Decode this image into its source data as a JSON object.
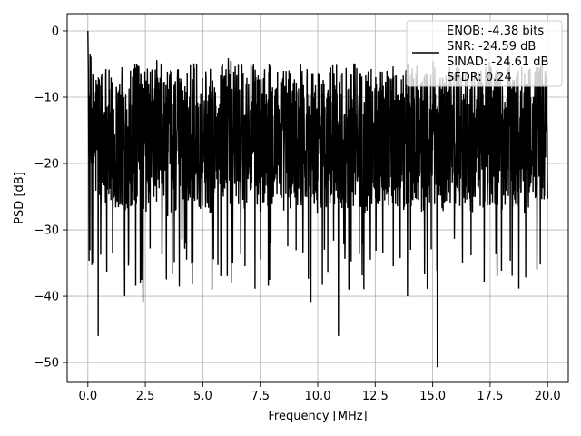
{
  "chart_data": {
    "type": "line",
    "title": "",
    "xlabel": "Frequency [MHz]",
    "ylabel": "PSD [dB]",
    "xlim": [
      -0.9,
      20.9
    ],
    "ylim": [
      -53,
      2.6
    ],
    "xticks": [
      0.0,
      2.5,
      5.0,
      7.5,
      10.0,
      12.5,
      15.0,
      17.5,
      20.0
    ],
    "xtick_labels": [
      "0.0",
      "2.5",
      "5.0",
      "7.5",
      "10.0",
      "12.5",
      "15.0",
      "17.5",
      "20.0"
    ],
    "yticks": [
      0,
      -10,
      -20,
      -30,
      -40,
      -50
    ],
    "ytick_labels": [
      "0",
      "−10",
      "−20",
      "−30",
      "−40",
      "−50"
    ],
    "grid": true,
    "legend_placement": "upper right",
    "line_color": "#000000",
    "legend": {
      "entries": [
        "ENOB: -4.38 bits",
        "SNR: -24.59 dB",
        "SINAD: -24.61 dB",
        "SFDR: 0.24"
      ]
    },
    "series": [
      {
        "x": [
          0.0,
          0.2,
          0.4,
          0.6,
          0.8,
          1.0,
          1.5,
          2.0,
          2.5,
          3.0,
          3.5,
          4.0,
          4.5,
          5.0,
          5.5,
          6.0,
          6.5,
          7.0,
          7.5,
          8.0,
          8.5,
          9.0,
          9.5,
          10.0,
          10.5,
          11.0,
          11.5,
          12.0,
          12.5,
          13.0,
          13.5,
          14.0,
          14.5,
          15.0,
          15.5,
          16.0,
          16.5,
          17.0,
          17.5,
          18.0,
          18.5,
          19.0,
          19.5,
          20.0
        ],
        "y": [
          0,
          -18,
          -14,
          -16,
          -12,
          -22,
          -17,
          -15,
          -18,
          -13,
          -20,
          -16,
          -14,
          -17,
          -19,
          -12,
          -16,
          -15,
          -18,
          -14,
          -17,
          -16,
          -13,
          -19,
          -15,
          -17,
          -14,
          -18,
          -16,
          -13,
          -20,
          -15,
          -17,
          -14,
          -18,
          -15,
          -16,
          -19,
          -14,
          -17,
          -15,
          -18,
          -16,
          -15
        ]
      }
    ],
    "noise": {
      "points": 2200,
      "seed": 12345,
      "floor_mean": -16,
      "floor_spread": 11,
      "lower_tail": -35
    },
    "dips": [
      {
        "x": 0.45,
        "y": -46
      },
      {
        "x": 0.2,
        "y": -35
      },
      {
        "x": 1.6,
        "y": -40
      },
      {
        "x": 2.4,
        "y": -41
      },
      {
        "x": 5.4,
        "y": -39
      },
      {
        "x": 6.3,
        "y": -35
      },
      {
        "x": 9.7,
        "y": -41
      },
      {
        "x": 10.9,
        "y": -46
      },
      {
        "x": 11.35,
        "y": -39
      },
      {
        "x": 13.9,
        "y": -40
      },
      {
        "x": 15.2,
        "y": -50.7
      },
      {
        "x": 16.3,
        "y": -35
      },
      {
        "x": 17.8,
        "y": -37
      }
    ]
  }
}
